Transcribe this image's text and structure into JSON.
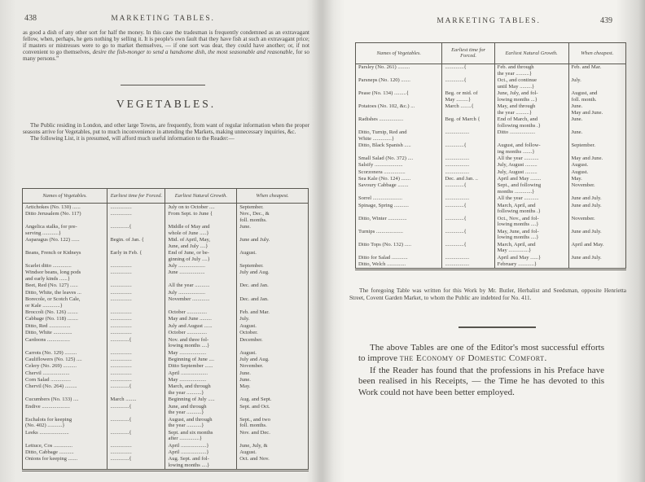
{
  "left_page": {
    "page_number": "438",
    "running_head": "MARKETING TABLES.",
    "top_paragraph": {
      "part1": "as good a dish of any other sort for half the money.  In this case the tradesman is frequently condemned as an extravagant fellow, when, perhaps, he gets nothing by selling it.  It is people's own fault that they have fish at such an extravagant price; if masters or mistresses were to go to market themselves, — if one sort was dear, they could have another; or, if not convenient to go themselves, ",
      "italic_part": "desire the fish-monger to send a handsome dish, the most seasonable and reasonable,",
      "part2": " for so many persons.”"
    },
    "section_title": "VEGETABLES.",
    "intro_paragraph_1": "The Public residing in London, and other large Towns, are frequently, from want of regular information when the proper seasons arrive for Vegetables, put to much inconvenience in attending the Markets, making unnecessary inquiries, &c.",
    "intro_paragraph_2": "The following List, it is presumed, will afford much useful information to the Reader:—",
    "table": {
      "headers": [
        "Names of Vegetables.",
        "Earliest time for Forced.",
        "Earliest Natural Growth.",
        "When cheapest."
      ],
      "rows": [
        [
          "Artichokes (No. 130) ......",
          "................",
          "July on to October ....",
          "September."
        ],
        [
          "Ditto Jerusalem (No. 117)",
          "................",
          "From Sept. to June  {",
          "Nov., Dec., &\nfoll. months."
        ],
        [
          "Angelica stalks, for pre-\nserving ............}",
          "..............{",
          "Middle of May and\nwhole of June .....}",
          "June."
        ],
        [
          "Asparagus (No. 122) ......",
          "Begin. of Jan. {",
          "Mid. of April, May,\nJune, and July ....}",
          "June and July."
        ],
        [
          "Beans, French or Kidneys",
          "Early in Feb. {",
          "End of June, or be-\nginning of July ....}",
          "August."
        ],
        [
          "Scarlet ditto ..............",
          "................",
          "July ....................",
          "September."
        ],
        [
          "Windsor beans, long pods\nand early kinds ......}",
          "................",
          "June ...................",
          "July and Aug."
        ],
        [
          "Beet, Red (No. 127) ......",
          "................",
          "All the year ...........",
          "Dec. and Jan."
        ],
        [
          "Ditto, White, the leaves ...",
          "................",
          "July ....................",
          ""
        ],
        [
          "Borecole, or Scotch Cale,\nor Kale .............}",
          "................",
          "November .............",
          "Dec. and Jan."
        ],
        [
          "Broccoli (No. 126) ........",
          "................",
          "October ...............",
          "Feb. and Mar."
        ],
        [
          "Cabbage (No. 118) ........",
          "................",
          "May and June .........",
          "July."
        ],
        [
          "Ditto, Red ................",
          "................",
          "July and August ......",
          "August."
        ],
        [
          "Ditto, White ..............",
          "................",
          "October ...............",
          "October."
        ],
        [
          "Cardoons .................",
          "..............{",
          "Nov. and three fol-\nlowing months ....}",
          "December."
        ],
        [
          "Carrots (No. 129) .........",
          "................",
          "May ....................",
          "August."
        ],
        [
          "Cauliflowers (No. 125) ....",
          "................",
          "Beginning of June ....",
          "July and Aug."
        ],
        [
          "Celery (No. 269) ..........",
          "................",
          "Ditto September ......",
          "November."
        ],
        [
          "Chervil ....................",
          "................",
          "April ....................",
          "June."
        ],
        [
          "Corn Salad ...............",
          "................",
          "May ....................",
          "June."
        ],
        [
          "Chervil (No. 264) .........",
          "..............{",
          "March, and through\nthe year ...........}",
          "May."
        ],
        [
          "Cucumbers (No. 133) ....",
          "March ........",
          "Beginning of July .....",
          "Aug. and Sept."
        ],
        [
          "Endive .....................",
          "..............{",
          "June, and through\nthe year ...........}",
          "Sept. and Oct."
        ],
        [
          "Eschalots for keeping\n(No. 402) ...........}",
          "..............{",
          "August, and through\nthe year ...........}",
          "Sept., and two\nfoll. months."
        ],
        [
          "Leeks ......................",
          "..............{",
          "Sept. and six months\nafter ...............}",
          "Nov. and Dec."
        ],
        [
          "Lettuce, Cos ..............",
          "................",
          "April ...................}",
          "June, July, &"
        ],
        [
          "Ditto, Cabbage ...........",
          "................",
          "April ...................}",
          "August."
        ],
        [
          "Onions for keeping .......",
          "..............{",
          "Aug. Sept. and fol-\nlowing months ....}",
          "Oct. and Nov."
        ]
      ]
    }
  },
  "right_page": {
    "page_number": "439",
    "running_head": "MARKETING TABLES.",
    "table": {
      "headers": [
        "Names of Vegetables.",
        "Earliest time for Forced.",
        "Earliest Natural Growth.",
        "When cheapest."
      ],
      "rows": [
        [
          "Parsley (No. 261) .........",
          "..............{",
          "Feb. and through\nthe year ..........}",
          "Feb. and Mar."
        ],
        [
          "Parsneps (No. 120) .......",
          "..............{",
          "Oct., and continue\nuntil May .........}",
          "July."
        ],
        [
          "Pease (No. 134) .........{",
          "Beg. or mid. of\nMay .........}",
          "June, July, and fol-\nlowing months ...}",
          "August,  and\nfoll. month."
        ],
        [
          "Potatoes (No. 102, &c.) ...",
          "March ........{",
          "May, and through\nthe year ..........}",
          "June.\nMay and June."
        ],
        [
          "Radishes ..................",
          "Beg. of March {",
          "End of March, and\nfollowing months .}",
          "June."
        ],
        [
          "Ditto, Turnip, Red and\nWhite ..............}",
          "..................",
          "Ditto ...................",
          "June."
        ],
        [
          "Ditto, Black Spanish .....",
          "..............{",
          "August, and follow-\ning months .......}",
          "September."
        ],
        [
          "Small Salad (No. 372) ....",
          "..................",
          "All the year ...........",
          "May and June."
        ],
        [
          "Salsify .....................",
          "..................",
          "July, August .........",
          "August."
        ],
        [
          "Scorzonera ................",
          "..................",
          "July, August .........",
          "August."
        ],
        [
          "Sea Kale (No. 124) .......",
          "Dec. and Jan. ..",
          "April and May ........",
          "May."
        ],
        [
          "Savoury Cabbage ........",
          "..............{",
          "Sept., and following\nmonths .............}",
          "November."
        ],
        [
          "Sorrel ......................",
          "..................",
          "All the year ...........",
          "June and July."
        ],
        [
          "Spinage, Spring ...........",
          "..............{",
          "March, April, and\nfollowing months .}",
          "June and July."
        ],
        [
          "Ditto, Winter ..............",
          "..............{",
          "Oct., Nov., and fol-\nlowing months ....}",
          "November."
        ],
        [
          "Turnips ....................",
          "..............{",
          "May, June, and fol-\nlowing months ....}",
          "June and July."
        ],
        [
          "Ditto Tops (No. 132) .....",
          "..............{",
          "March, April, and\nMay ...............}",
          "April and May."
        ],
        [
          "Ditto for Salad ............",
          "..................",
          "April and May ......}",
          "June and July."
        ],
        [
          "Ditto, Welch ..............",
          "..................",
          "February ............}",
          ""
        ]
      ]
    },
    "footnote": "The foregoing Table was written for this Work by Mr. Butler, Herbalist and Seedsman, opposite Henrietta Street, Covent Garden Market, to whom the Public are indebted for No. 411.",
    "closing_paragraph_1": {
      "part1": "The above Tables are one of the Editor's most successful efforts to improve ",
      "smallcaps": "the Economy of Domestic Comfort."
    },
    "closing_paragraph_2": "If the Reader has found that the professions in his Preface have been realised in his Receipts, — the Time he has devoted to this Work could not have been better employed."
  }
}
